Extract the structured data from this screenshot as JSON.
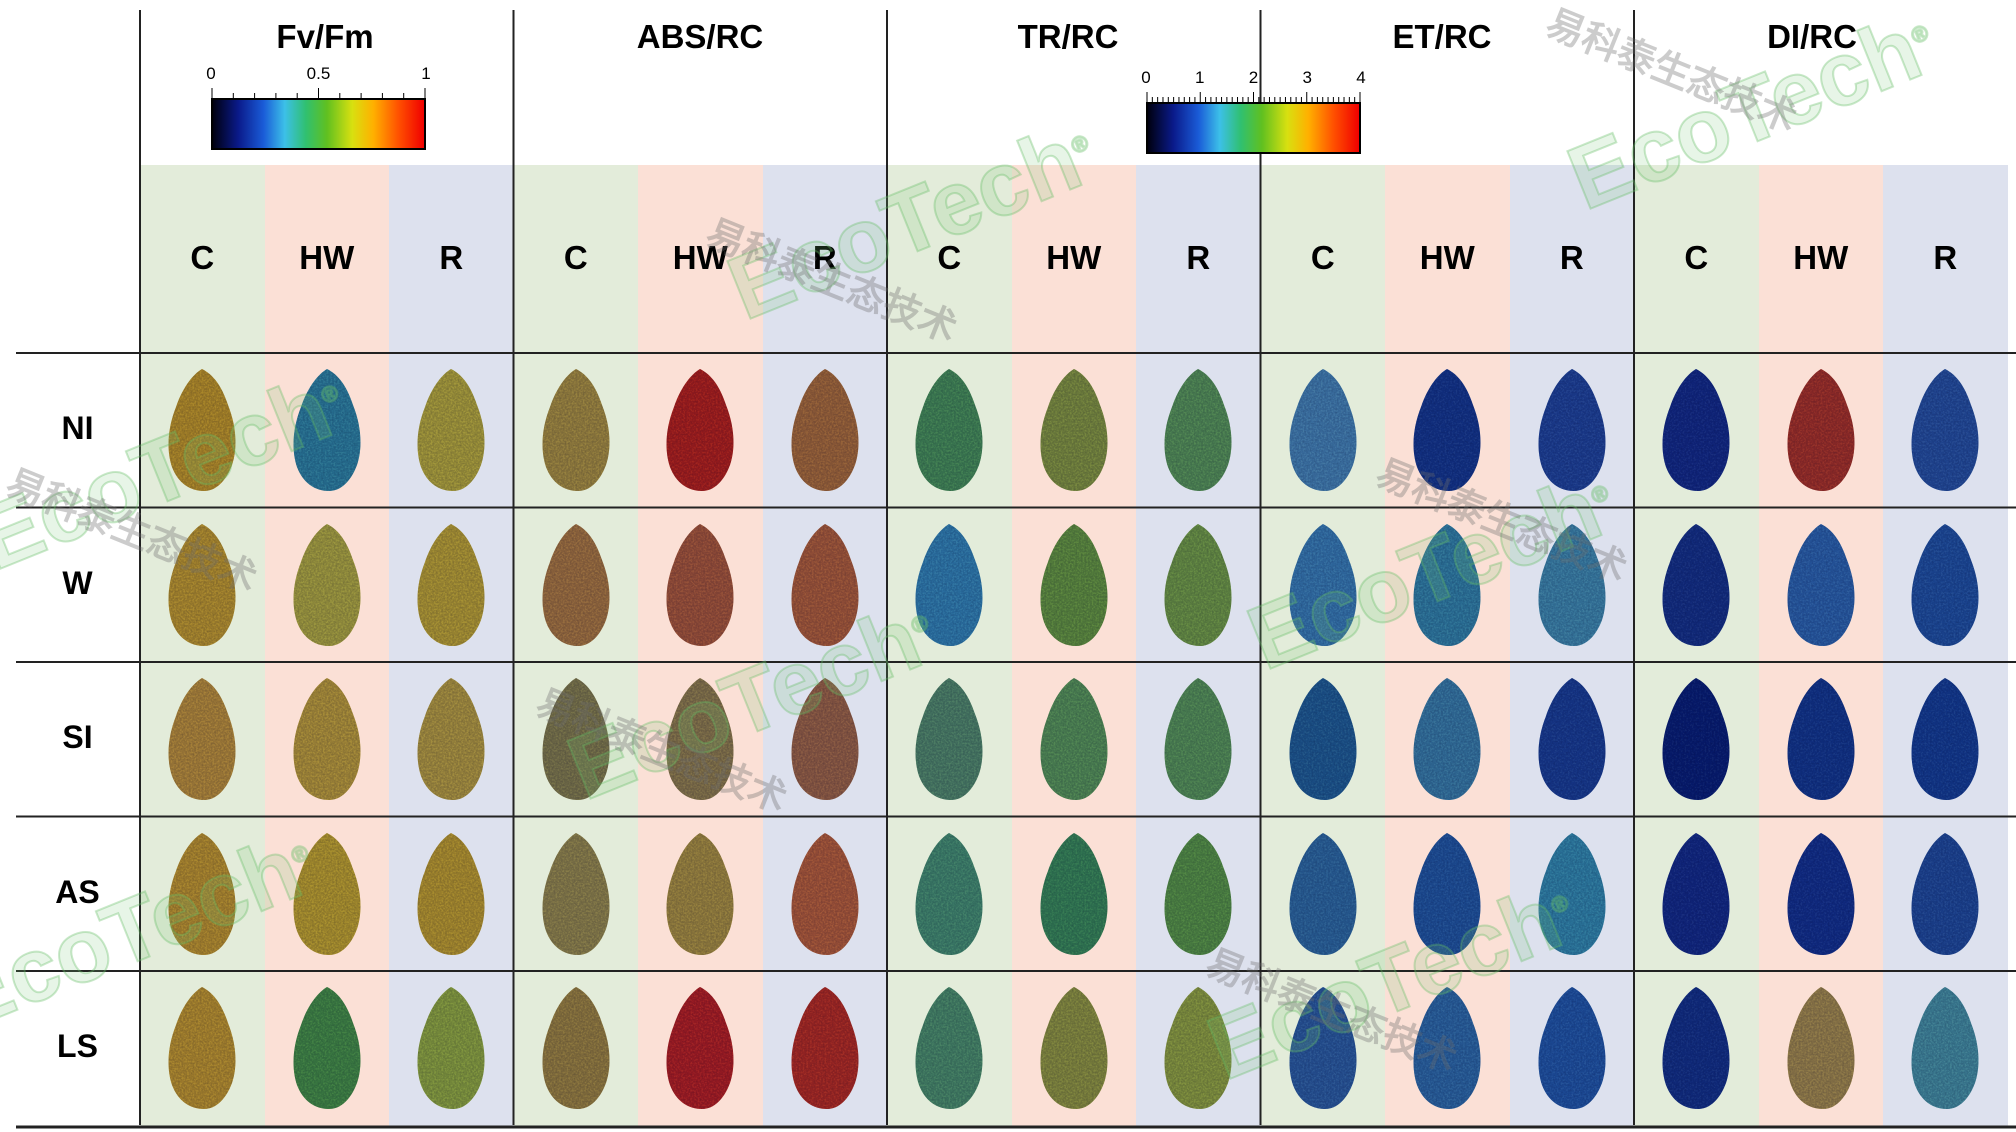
{
  "parameters": [
    "Fv/Fm",
    "ABS/RC",
    "TR/RC",
    "ET/RC",
    "DI/RC"
  ],
  "treatments": [
    "C",
    "HW",
    "R"
  ],
  "rows": [
    "NI",
    "W",
    "SI",
    "AS",
    "LS"
  ],
  "treatment_colors": {
    "C": "#e3ecda",
    "HW": "#fbe0d6",
    "R": "#dde1ee"
  },
  "scales": {
    "fvfm": {
      "ticks": [
        "0",
        "0.5",
        "1"
      ]
    },
    "rc": {
      "ticks": [
        "0",
        "1",
        "2",
        "3",
        "4"
      ]
    }
  },
  "watermark": {
    "brand": "EcoTech",
    "cn": "易科泰生态技术",
    "reg": "®"
  },
  "leaf_colors": [
    [
      "#f5c020",
      "#3aa8c0",
      "#e8d83a",
      "#d8b840",
      "#e82a10",
      "#d88a38",
      "#5ab860",
      "#a8c040",
      "#70c060",
      "#58a8d8",
      "#1a48a8",
      "#2858b8",
      "#1838a0",
      "#d84020",
      "#3068c0"
    ],
    [
      "#f5c428",
      "#e0d840",
      "#f0d030",
      "#d89840",
      "#d87038",
      "#e07838",
      "#40a8d8",
      "#80c040",
      "#90c848",
      "#48a0d8",
      "#40a8c8",
      "#50b0d0",
      "#1a40a0",
      "#3880d0",
      "#2868c0"
    ],
    [
      "#f0b838",
      "#f0c838",
      "#e8c840",
      "#a8a050",
      "#b8a050",
      "#c88048",
      "#68b078",
      "#70c060",
      "#70c060",
      "#2878b0",
      "#48a0c8",
      "#2050b0",
      "#0a2888",
      "#1848a8",
      "#1a50b0"
    ],
    [
      "#f5c028",
      "#f5d028",
      "#f2c828",
      "#c0b050",
      "#d8b840",
      "#e87838",
      "#58b880",
      "#48b060",
      "#70c048",
      "#3a88c0",
      "#2a70c0",
      "#40b0d0",
      "#1838a0",
      "#1840a8",
      "#2860b8"
    ],
    [
      "#f5c028",
      "#58b848",
      "#b8d840",
      "#c8a840",
      "#e82818",
      "#e83818",
      "#60b878",
      "#b8c040",
      "#b8d040",
      "#3878c0",
      "#3a88c8",
      "#2a70c8",
      "#1840a0",
      "#d0b050",
      "#58b8c0"
    ]
  ]
}
